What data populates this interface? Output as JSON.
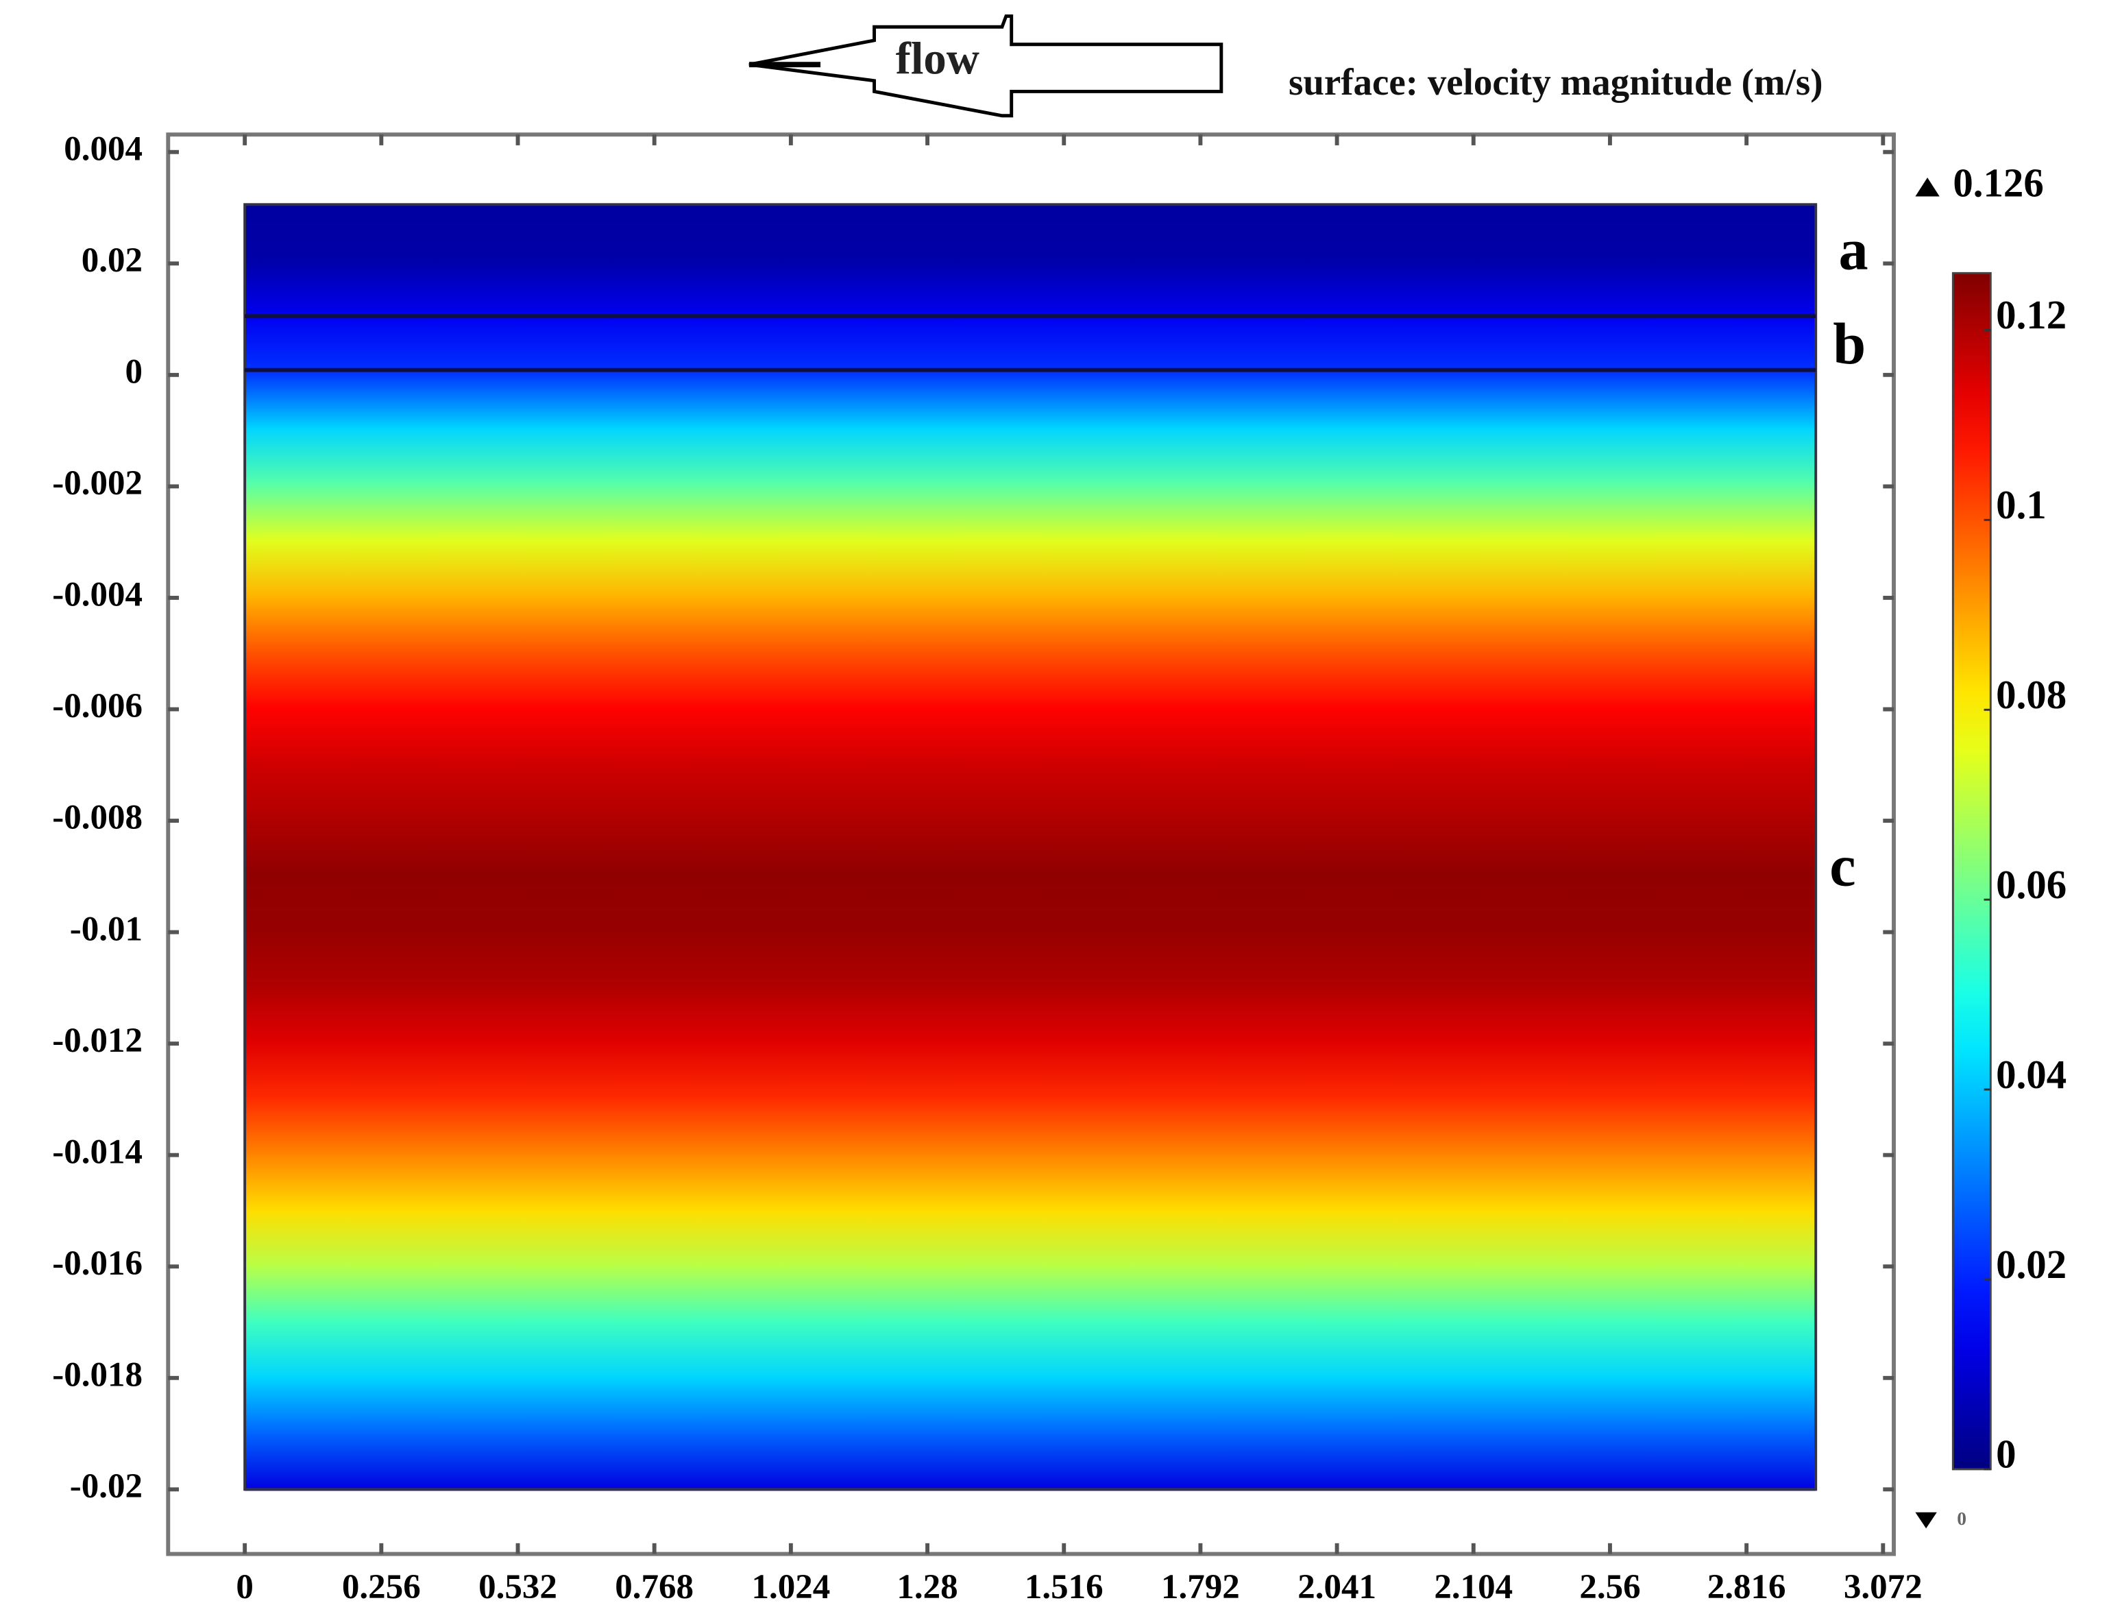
{
  "chart_data": {
    "type": "surface",
    "title": "surface: velocity magnitude (m/s)",
    "flow_label": "flow",
    "x_categories": [
      "0",
      "0.256",
      "0.532",
      "0.768",
      "1.024",
      "1.28",
      "1.516",
      "1.792",
      "2.041",
      "2.104",
      "2.56",
      "2.816",
      "3.072"
    ],
    "y_categories": [
      "0.004",
      "0.02",
      "0",
      "-0.002",
      "-0.004",
      "-0.006",
      "-0.008",
      "-0.01",
      "-0.012",
      "-0.014",
      "-0.016",
      "-0.018",
      "-0.02"
    ],
    "profile_values": [
      0.004,
      0.005,
      0.014,
      0.022,
      0.042,
      0.058,
      0.075,
      0.088,
      0.1,
      0.11,
      0.116,
      0.12,
      0.124,
      0.123,
      0.12,
      0.114,
      0.105,
      0.094,
      0.083,
      0.07,
      0.055,
      0.042,
      0.028,
      0.012
    ],
    "annotations": [
      "a",
      "b",
      "c"
    ],
    "colormap": "jet",
    "clim": [
      0,
      0.126
    ],
    "cticks": [
      0,
      0.02,
      0.04,
      0.06,
      0.08,
      0.1,
      0.12
    ]
  }
}
